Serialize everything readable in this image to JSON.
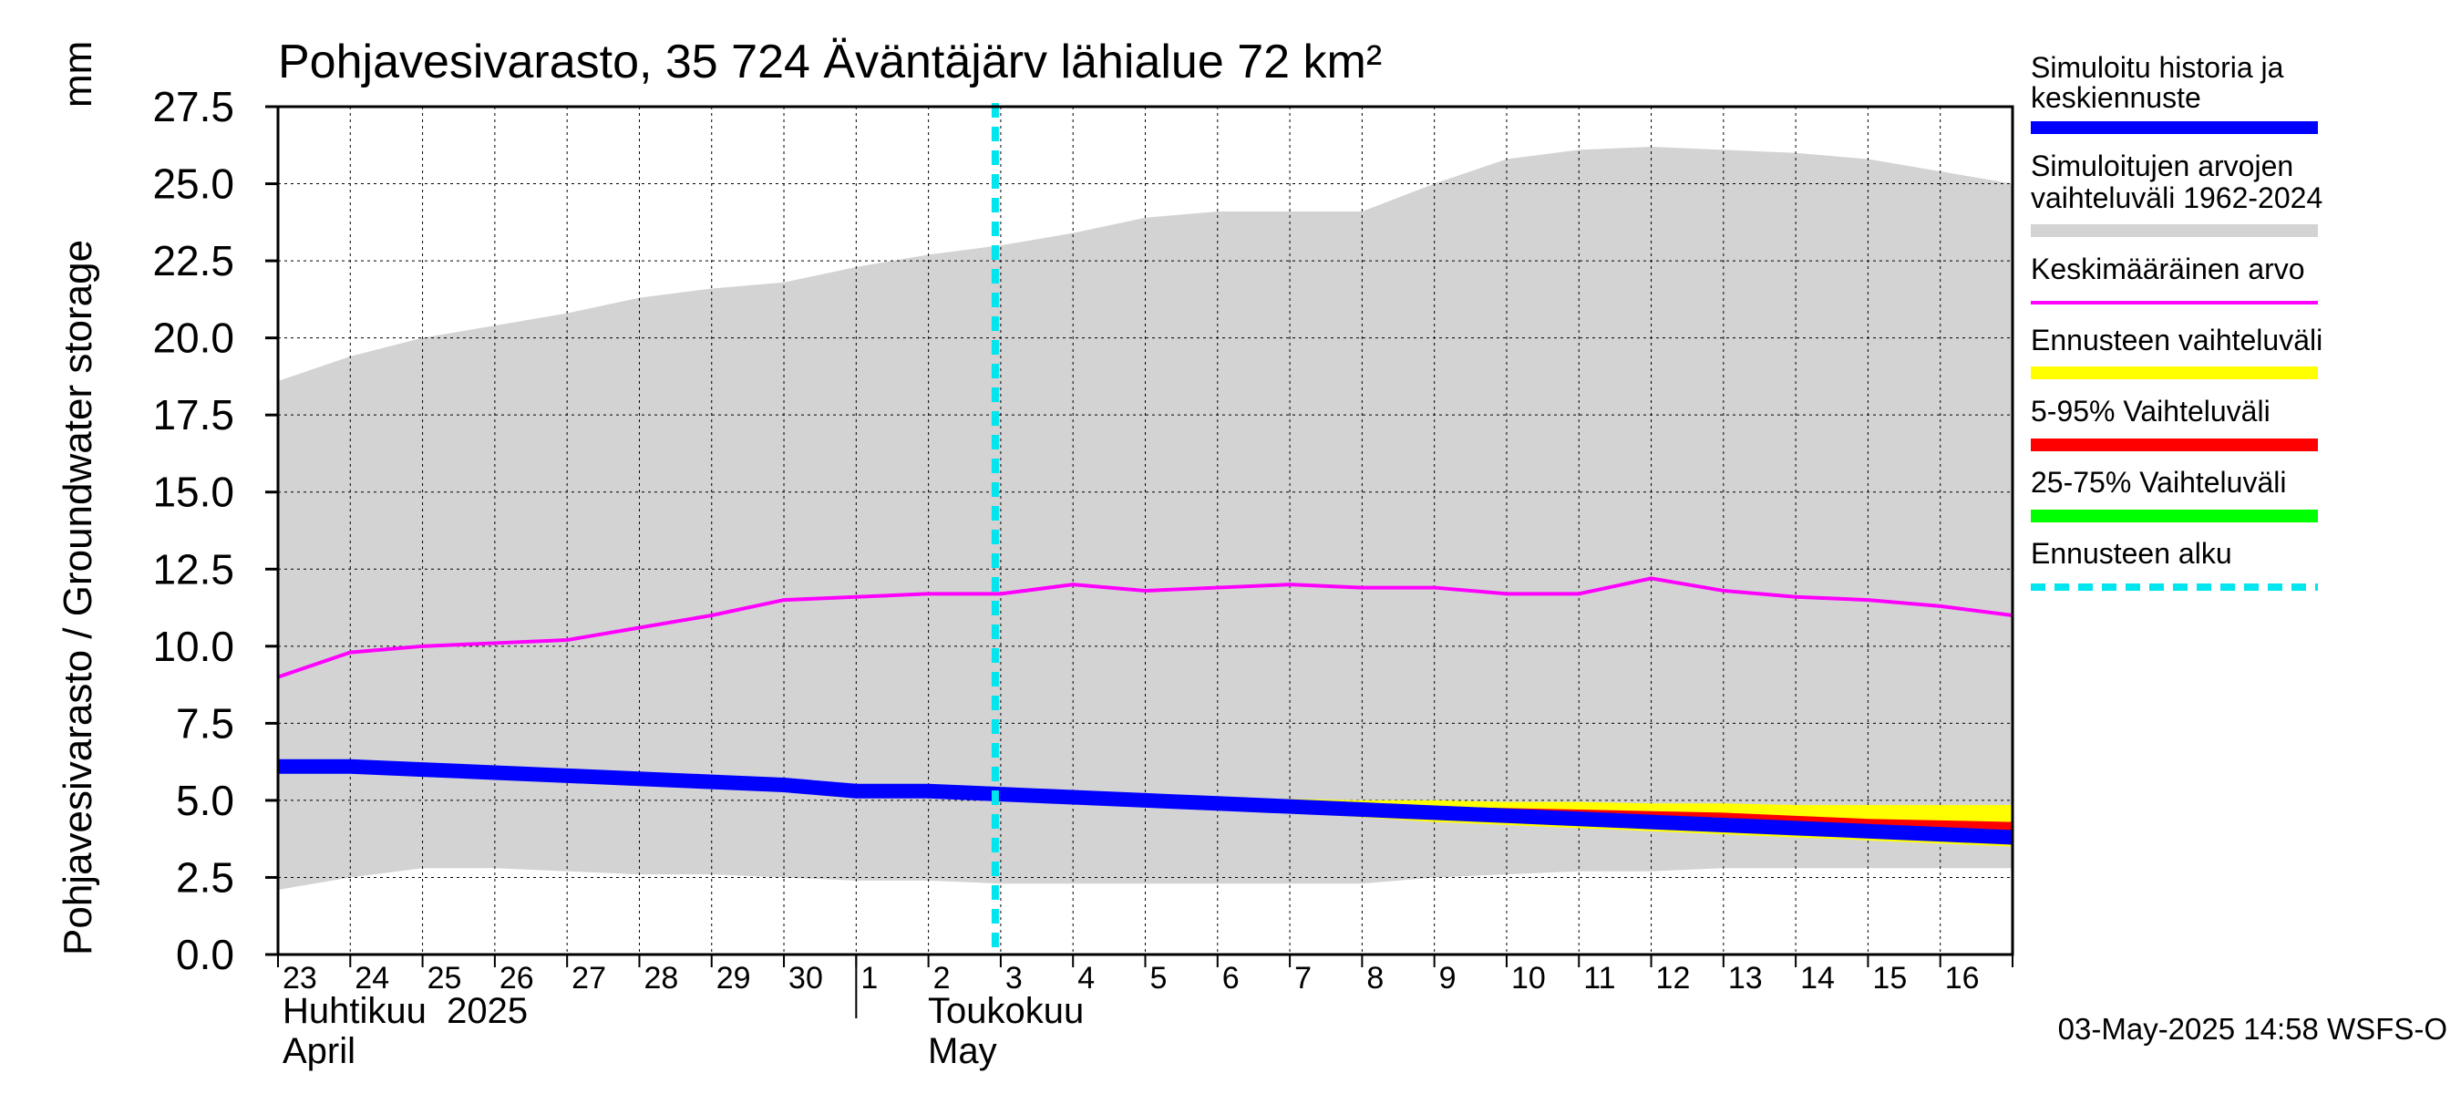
{
  "chart_data": {
    "type": "area",
    "title": "Pohjavesivarasto, 35 724 Äväntäjärv lähialue 72 km²",
    "ylabel": "Pohjavesivarasto / Groundwater storage",
    "yunit": "mm",
    "ylim": [
      0,
      27.5
    ],
    "yticks": [
      "0.0",
      "2.5",
      "5.0",
      "7.5",
      "10.0",
      "12.5",
      "15.0",
      "17.5",
      "20.0",
      "22.5",
      "25.0",
      "27.5"
    ],
    "xlim_days": [
      0,
      24
    ],
    "day_labels": [
      "23",
      "24",
      "25",
      "26",
      "27",
      "28",
      "29",
      "30",
      "1",
      "2",
      "3",
      "4",
      "5",
      "6",
      "7",
      "8",
      "9",
      "10",
      "11",
      "12",
      "13",
      "14",
      "15",
      "16"
    ],
    "month_left_fi": "Huhtikuu  2025",
    "month_left_en": "April",
    "month_right_fi": "Toukokuu",
    "month_right_en": "May",
    "month_boundary_day": 8,
    "forecast_start_day": 10,
    "footer": "03-May-2025 14:58 WSFS-O",
    "days": [
      0,
      1,
      2,
      3,
      4,
      5,
      6,
      7,
      8,
      9,
      10,
      11,
      12,
      13,
      14,
      15,
      16,
      17,
      18,
      19,
      20,
      21,
      22,
      23,
      24
    ],
    "range_upper": [
      18.6,
      19.4,
      20.0,
      20.4,
      20.8,
      21.3,
      21.6,
      21.8,
      22.3,
      22.7,
      23.0,
      23.4,
      23.9,
      24.1,
      24.1,
      24.1,
      25.0,
      25.8,
      26.1,
      26.2,
      26.1,
      26.0,
      25.8,
      25.4,
      25.0
    ],
    "range_lower": [
      2.1,
      2.5,
      2.8,
      2.8,
      2.7,
      2.6,
      2.6,
      2.5,
      2.4,
      2.4,
      2.3,
      2.3,
      2.3,
      2.3,
      2.3,
      2.3,
      2.5,
      2.6,
      2.7,
      2.7,
      2.8,
      2.8,
      2.8,
      2.8,
      2.8
    ],
    "mean": [
      9.0,
      9.8,
      10.0,
      10.1,
      10.2,
      10.6,
      11.0,
      11.5,
      11.6,
      11.7,
      11.7,
      12.0,
      11.8,
      11.9,
      12.0,
      11.9,
      11.9,
      11.7,
      11.7,
      12.2,
      11.8,
      11.6,
      11.5,
      11.3,
      11.0
    ],
    "history": [
      6.1,
      6.1,
      6.0,
      5.9,
      5.8,
      5.7,
      5.6,
      5.5,
      5.3,
      5.3,
      5.2
    ],
    "forecast_days": [
      10,
      11,
      12,
      13,
      14,
      15,
      16,
      17,
      18,
      19,
      20,
      21,
      22,
      23,
      24
    ],
    "fc_max": [
      5.2,
      5.15,
      5.1,
      5.05,
      5.05,
      5.0,
      5.0,
      4.95,
      4.95,
      4.9,
      4.9,
      4.85,
      4.85,
      4.85,
      4.85
    ],
    "fc_p95": [
      5.2,
      5.1,
      5.0,
      4.95,
      4.9,
      4.85,
      4.8,
      4.75,
      4.7,
      4.65,
      4.6,
      4.5,
      4.4,
      4.35,
      4.3
    ],
    "fc_p75": [
      5.2,
      5.1,
      5.0,
      4.95,
      4.85,
      4.75,
      4.65,
      4.55,
      4.45,
      4.35,
      4.25,
      4.15,
      4.1,
      4.05,
      3.95
    ],
    "fc_median": [
      5.2,
      5.1,
      5.0,
      4.9,
      4.8,
      4.7,
      4.6,
      4.5,
      4.4,
      4.3,
      4.2,
      4.1,
      4.0,
      3.9,
      3.8
    ],
    "fc_p25": [
      5.2,
      5.1,
      5.0,
      4.85,
      4.75,
      4.6,
      4.5,
      4.4,
      4.3,
      4.2,
      4.1,
      4.0,
      3.9,
      3.8,
      3.7
    ],
    "fc_p5": [
      5.2,
      5.1,
      5.0,
      4.8,
      4.7,
      4.55,
      4.45,
      4.3,
      4.2,
      4.1,
      4.0,
      3.9,
      3.8,
      3.7,
      3.6
    ],
    "fc_min": [
      5.2,
      5.1,
      4.95,
      4.75,
      4.6,
      4.45,
      4.3,
      4.2,
      4.1,
      4.0,
      3.9,
      3.8,
      3.7,
      3.6,
      3.5
    ],
    "legend": [
      {
        "label": "Simuloitu historia ja keskiennuste",
        "color": "#0000ff",
        "style": "thick"
      },
      {
        "label": "Simuloitujen arvojen vaihteluväli 1962-2024",
        "color": "#d3d3d3",
        "style": "band"
      },
      {
        "label": "Keskimääräinen arvo",
        "color": "#ff00ff",
        "style": "thin"
      },
      {
        "label": "Ennusteen vaihteluväli",
        "color": "#ffff00",
        "style": "band"
      },
      {
        "label": "5-95% Vaihteluväli",
        "color": "#ff0000",
        "style": "band"
      },
      {
        "label": "25-75% Vaihteluväli",
        "color": "#00ff00",
        "style": "band"
      },
      {
        "label": "Ennusteen alku",
        "color": "#00e5ee",
        "style": "dashed"
      }
    ],
    "colors": {
      "range": "#d3d3d3",
      "mean": "#ff00ff",
      "history": "#0000ff",
      "fc_band": "#ffff00",
      "fc_p5_95": "#ff0000",
      "fc_p25_75": "#00ff00",
      "forecast_start": "#00e5ee"
    }
  }
}
